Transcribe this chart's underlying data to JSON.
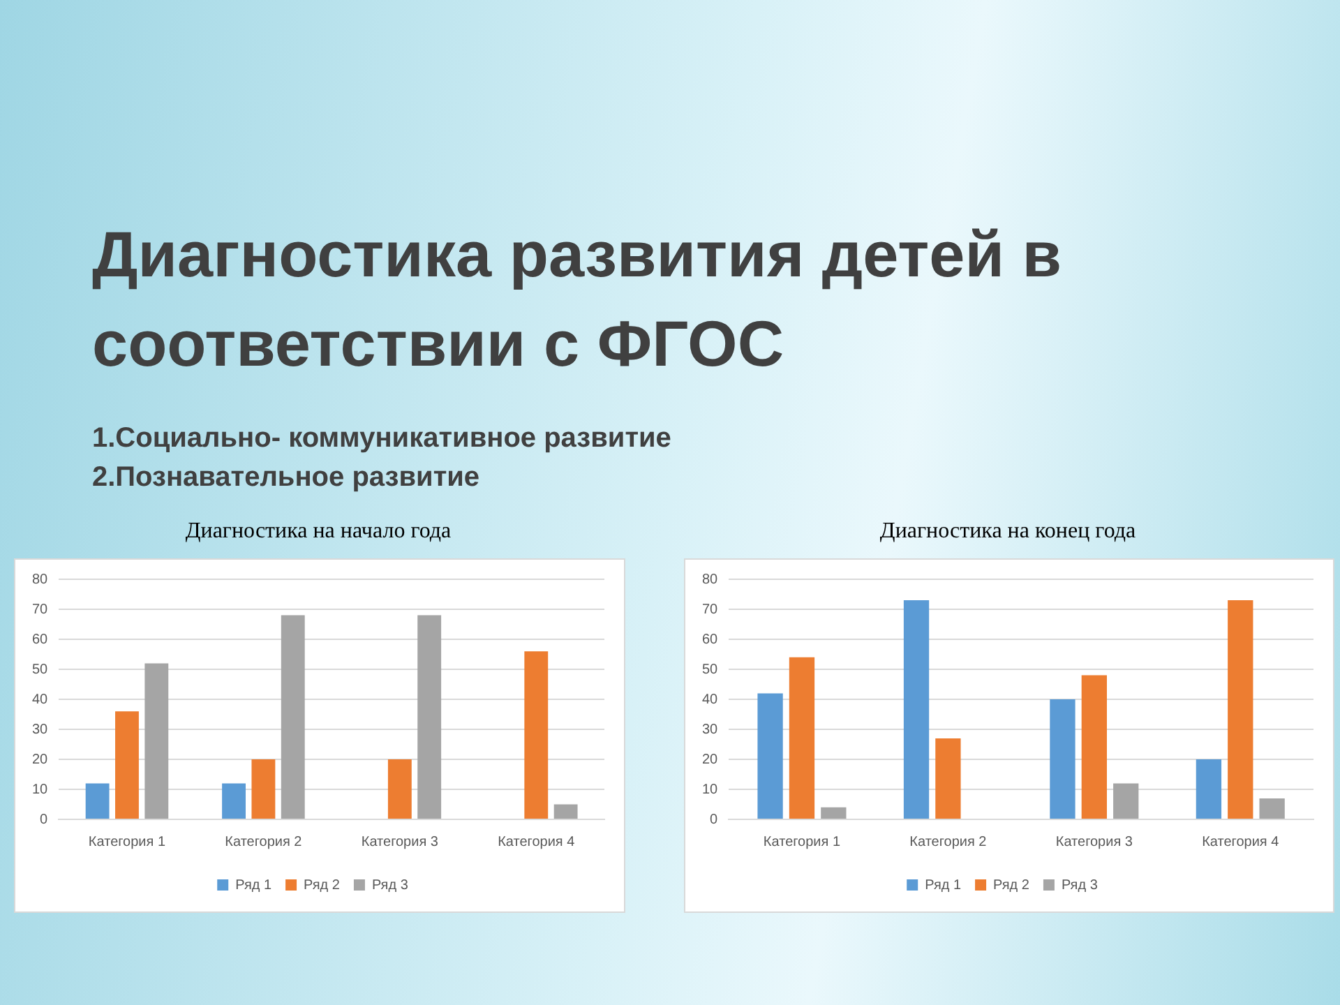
{
  "chart_data": [
    {
      "type": "bar",
      "title": "Диагностика на начало года",
      "annotations": [
        "Диагностика развития детей в соответствии с ФГОС",
        "1.Социально- коммуникативное развитие",
        "2.Познавательное развитие"
      ],
      "categories": [
        "Категория 1",
        "Категория 2",
        "Категория 3",
        "Категория 4"
      ],
      "series": [
        {
          "name": "Ряд 1",
          "color": "#5b9bd5",
          "values": [
            12,
            12,
            null,
            null
          ]
        },
        {
          "name": "Ряд 2",
          "color": "#ed7d31",
          "values": [
            36,
            20,
            20,
            56
          ]
        },
        {
          "name": "Ряд 3",
          "color": "#a5a5a5",
          "values": [
            52,
            68,
            68,
            5
          ]
        }
      ],
      "ylim": [
        0,
        80
      ],
      "yticks": [
        0,
        10,
        20,
        30,
        40,
        50,
        60,
        70,
        80
      ],
      "grid": "y",
      "legend": "bottom"
    },
    {
      "type": "bar",
      "title": "Диагностика на конец года",
      "categories": [
        "Категория 1",
        "Категория 2",
        "Категория 3",
        "Категория 4"
      ],
      "series": [
        {
          "name": "Ряд 1",
          "color": "#5b9bd5",
          "values": [
            42,
            73,
            40,
            20
          ]
        },
        {
          "name": "Ряд 2",
          "color": "#ed7d31",
          "values": [
            54,
            27,
            48,
            73
          ]
        },
        {
          "name": "Ряд 3",
          "color": "#a5a5a5",
          "values": [
            4,
            null,
            12,
            7
          ]
        }
      ],
      "ylim": [
        0,
        80
      ],
      "yticks": [
        0,
        10,
        20,
        30,
        40,
        50,
        60,
        70,
        80
      ],
      "grid": "y",
      "legend": "bottom"
    }
  ]
}
